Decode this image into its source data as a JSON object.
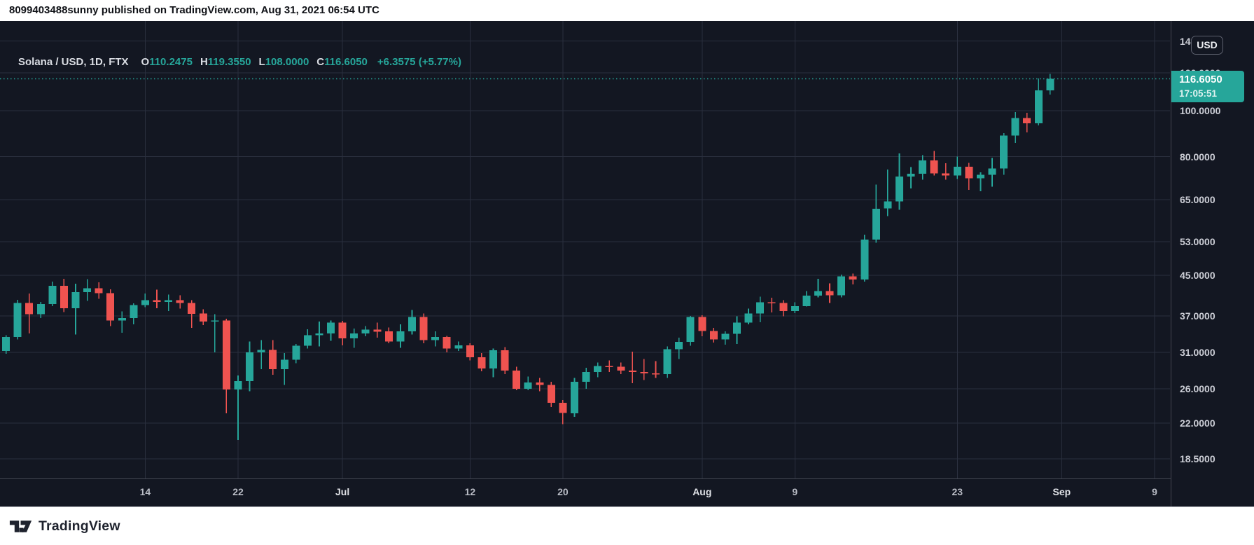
{
  "banner": {
    "text": "8099403488sunny published on TradingView.com, Aug 31, 2021 06:54 UTC"
  },
  "legend": {
    "title": "Solana / USD, 1D, FTX",
    "open_label": "O",
    "open": "110.2475",
    "high_label": "H",
    "high": "119.3550",
    "low_label": "L",
    "low": "108.0000",
    "close_label": "C",
    "close": "116.6050",
    "change": "+6.3575 (+5.77%)"
  },
  "price_axis": {
    "currency_button": "USD",
    "last_price": "116.6050",
    "countdown": "17:05:51",
    "labels": [
      {
        "text": "140.0000",
        "value": 140
      },
      {
        "text": "120.0000",
        "value": 120
      },
      {
        "text": "100.0000",
        "value": 100
      },
      {
        "text": "80.0000",
        "value": 80
      },
      {
        "text": "65.0000",
        "value": 65
      },
      {
        "text": "53.0000",
        "value": 53
      },
      {
        "text": "45.0000",
        "value": 45
      },
      {
        "text": "37.0000",
        "value": 37
      },
      {
        "text": "31.0000",
        "value": 31
      },
      {
        "text": "26.0000",
        "value": 26
      },
      {
        "text": "22.0000",
        "value": 22
      },
      {
        "text": "18.5000",
        "value": 18.5
      }
    ]
  },
  "time_axis": {
    "ticks": [
      {
        "text": "14",
        "day_index": 13,
        "major": false
      },
      {
        "text": "22",
        "day_index": 21,
        "major": false
      },
      {
        "text": "Jul",
        "day_index": 30,
        "major": true
      },
      {
        "text": "12",
        "day_index": 41,
        "major": false
      },
      {
        "text": "20",
        "day_index": 49,
        "major": false
      },
      {
        "text": "Aug",
        "day_index": 61,
        "major": true
      },
      {
        "text": "9",
        "day_index": 69,
        "major": false
      },
      {
        "text": "23",
        "day_index": 83,
        "major": false
      },
      {
        "text": "Sep",
        "day_index": 92,
        "major": true
      },
      {
        "text": "9",
        "day_index": 100,
        "major": false
      }
    ]
  },
  "footer": {
    "brand": "TradingView"
  },
  "colors": {
    "background": "#131722",
    "grid": "#2a2f3e",
    "axis_border": "#434651",
    "up": "#26a69a",
    "down": "#ef5350",
    "badge": "#26a69a",
    "price_line": "#26a69a"
  },
  "chart_data": {
    "type": "candlestick",
    "title": "Solana / USD, 1D, FTX",
    "symbol": "Solana / USD",
    "interval": "1D",
    "exchange": "FTX",
    "price_scale": "logarithmic",
    "ylim": [
      16.9,
      154.3
    ],
    "y_ticks": [
      140,
      120,
      100,
      80,
      65,
      53,
      45,
      37,
      31,
      26,
      22,
      18.5
    ],
    "x_tick_labels": [
      "14",
      "22",
      "Jul",
      "12",
      "20",
      "Aug",
      "9",
      "23",
      "Sep",
      "9"
    ],
    "last_bar": {
      "open": 110.2475,
      "high": 119.355,
      "low": 108.0,
      "close": 116.605,
      "change": "+6.3575",
      "change_pct": "+5.77%"
    },
    "candle_format": [
      "date",
      "open",
      "high",
      "low",
      "close"
    ],
    "candles": [
      [
        "2021-06-01",
        30.5,
        31.6,
        29.9,
        31.2
      ],
      [
        "2021-06-02",
        31.2,
        33.7,
        30.8,
        33.4
      ],
      [
        "2021-06-03",
        33.4,
        40.0,
        33.0,
        39.4
      ],
      [
        "2021-06-04",
        39.4,
        41.2,
        34.0,
        37.3
      ],
      [
        "2021-06-05",
        37.3,
        39.6,
        36.6,
        39.2
      ],
      [
        "2021-06-06",
        39.2,
        43.7,
        38.8,
        42.8
      ],
      [
        "2021-06-07",
        42.8,
        44.3,
        37.7,
        38.4
      ],
      [
        "2021-06-08",
        38.4,
        43.2,
        33.8,
        41.5
      ],
      [
        "2021-06-09",
        41.5,
        44.2,
        39.8,
        42.3
      ],
      [
        "2021-06-10",
        42.3,
        43.5,
        40.2,
        41.3
      ],
      [
        "2021-06-11",
        41.3,
        42.1,
        35.2,
        36.2
      ],
      [
        "2021-06-12",
        36.2,
        37.8,
        34.1,
        36.6
      ],
      [
        "2021-06-13",
        36.6,
        39.3,
        35.5,
        39.0
      ],
      [
        "2021-06-14",
        39.0,
        41.2,
        38.6,
        39.9
      ],
      [
        "2021-06-15",
        39.9,
        42.0,
        38.4,
        39.6
      ],
      [
        "2021-06-16",
        39.6,
        41.0,
        37.9,
        39.9
      ],
      [
        "2021-06-17",
        39.9,
        40.9,
        38.3,
        39.4
      ],
      [
        "2021-06-18",
        39.4,
        39.9,
        34.9,
        37.4
      ],
      [
        "2021-06-19",
        37.4,
        38.2,
        35.4,
        36.0
      ],
      [
        "2021-06-20",
        36.0,
        37.3,
        31.0,
        36.2
      ],
      [
        "2021-06-21",
        36.2,
        36.5,
        23.1,
        25.9
      ],
      [
        "2021-06-22",
        25.9,
        27.7,
        20.3,
        27.0
      ],
      [
        "2021-06-23",
        27.0,
        32.7,
        25.7,
        31.0
      ],
      [
        "2021-06-24",
        31.0,
        32.9,
        28.6,
        31.4
      ],
      [
        "2021-06-25",
        31.4,
        32.9,
        27.8,
        28.6
      ],
      [
        "2021-06-26",
        28.6,
        30.9,
        26.5,
        29.9
      ],
      [
        "2021-06-27",
        29.9,
        32.3,
        29.4,
        32.0
      ],
      [
        "2021-06-28",
        32.0,
        34.7,
        31.6,
        33.7
      ],
      [
        "2021-06-29",
        33.7,
        36.0,
        31.9,
        34.0
      ],
      [
        "2021-06-30",
        34.0,
        36.2,
        32.8,
        35.8
      ],
      [
        "2021-07-01",
        35.8,
        36.1,
        32.1,
        33.2
      ],
      [
        "2021-07-02",
        33.2,
        34.8,
        31.7,
        34.0
      ],
      [
        "2021-07-03",
        34.0,
        35.2,
        33.5,
        34.6
      ],
      [
        "2021-07-04",
        34.6,
        35.8,
        33.3,
        34.3
      ],
      [
        "2021-07-05",
        34.3,
        35.0,
        32.4,
        32.7
      ],
      [
        "2021-07-06",
        32.7,
        35.5,
        31.7,
        34.3
      ],
      [
        "2021-07-07",
        34.3,
        38.1,
        33.8,
        36.8
      ],
      [
        "2021-07-08",
        36.8,
        37.4,
        32.4,
        32.9
      ],
      [
        "2021-07-09",
        32.9,
        34.3,
        31.9,
        33.4
      ],
      [
        "2021-07-10",
        33.4,
        33.6,
        31.0,
        31.6
      ],
      [
        "2021-07-11",
        31.6,
        32.7,
        31.2,
        32.1
      ],
      [
        "2021-07-12",
        32.1,
        32.4,
        29.8,
        30.3
      ],
      [
        "2021-07-13",
        30.3,
        30.9,
        28.3,
        28.7
      ],
      [
        "2021-07-14",
        28.7,
        31.6,
        27.5,
        31.3
      ],
      [
        "2021-07-15",
        31.3,
        31.8,
        27.9,
        28.4
      ],
      [
        "2021-07-16",
        28.4,
        28.9,
        25.8,
        26.0
      ],
      [
        "2021-07-17",
        26.0,
        27.6,
        25.8,
        26.8
      ],
      [
        "2021-07-18",
        26.8,
        27.4,
        25.7,
        26.5
      ],
      [
        "2021-07-19",
        26.5,
        26.9,
        23.8,
        24.3
      ],
      [
        "2021-07-20",
        24.3,
        24.6,
        21.9,
        23.1
      ],
      [
        "2021-07-21",
        23.1,
        27.4,
        22.7,
        26.9
      ],
      [
        "2021-07-22",
        26.9,
        28.8,
        26.0,
        28.2
      ],
      [
        "2021-07-23",
        28.2,
        29.5,
        27.5,
        29.0
      ],
      [
        "2021-07-24",
        29.0,
        29.8,
        28.2,
        28.9
      ],
      [
        "2021-07-25",
        28.9,
        29.5,
        27.9,
        28.4
      ],
      [
        "2021-07-26",
        28.4,
        31.1,
        26.7,
        28.2
      ],
      [
        "2021-07-27",
        28.2,
        30.0,
        27.1,
        28.0
      ],
      [
        "2021-07-28",
        28.0,
        29.7,
        27.4,
        27.9
      ],
      [
        "2021-07-29",
        27.9,
        31.9,
        27.4,
        31.5
      ],
      [
        "2021-07-30",
        31.5,
        33.3,
        30.0,
        32.6
      ],
      [
        "2021-07-31",
        32.6,
        37.0,
        32.0,
        36.8
      ],
      [
        "2021-08-01",
        36.8,
        37.1,
        33.5,
        34.4
      ],
      [
        "2021-08-02",
        34.4,
        34.9,
        32.5,
        33.0
      ],
      [
        "2021-08-03",
        33.0,
        34.3,
        32.2,
        33.9
      ],
      [
        "2021-08-04",
        33.9,
        36.9,
        32.3,
        35.8
      ],
      [
        "2021-08-05",
        35.8,
        38.3,
        35.5,
        37.4
      ],
      [
        "2021-08-06",
        37.4,
        40.6,
        35.9,
        39.5
      ],
      [
        "2021-08-07",
        39.5,
        40.4,
        37.6,
        39.4
      ],
      [
        "2021-08-08",
        39.4,
        39.9,
        36.9,
        37.9
      ],
      [
        "2021-08-09",
        37.9,
        39.5,
        37.5,
        38.8
      ],
      [
        "2021-08-10",
        38.8,
        41.7,
        38.7,
        40.8
      ],
      [
        "2021-08-11",
        40.8,
        44.3,
        40.5,
        41.7
      ],
      [
        "2021-08-12",
        41.7,
        43.3,
        39.4,
        40.9
      ],
      [
        "2021-08-13",
        40.9,
        45.2,
        40.5,
        44.8
      ],
      [
        "2021-08-14",
        44.8,
        45.4,
        43.1,
        44.1
      ],
      [
        "2021-08-15",
        44.1,
        54.8,
        43.7,
        53.5
      ],
      [
        "2021-08-16",
        53.5,
        69.9,
        52.7,
        62.2
      ],
      [
        "2021-08-17",
        62.2,
        75.2,
        60.0,
        64.4
      ],
      [
        "2021-08-18",
        64.4,
        81.3,
        61.8,
        72.6
      ],
      [
        "2021-08-19",
        72.6,
        76.0,
        68.6,
        73.6
      ],
      [
        "2021-08-20",
        73.6,
        80.5,
        71.5,
        78.6
      ],
      [
        "2021-08-21",
        78.6,
        82.2,
        73.0,
        73.8
      ],
      [
        "2021-08-22",
        73.8,
        77.5,
        71.5,
        73.0
      ],
      [
        "2021-08-23",
        73.0,
        80.0,
        71.8,
        76.2
      ],
      [
        "2021-08-24",
        76.2,
        77.6,
        68.1,
        72.0
      ],
      [
        "2021-08-25",
        72.0,
        74.2,
        67.6,
        73.3
      ],
      [
        "2021-08-26",
        73.3,
        79.5,
        69.2,
        75.5
      ],
      [
        "2021-08-27",
        75.5,
        89.6,
        73.3,
        88.6
      ],
      [
        "2021-08-28",
        88.6,
        99.2,
        85.5,
        96.5
      ],
      [
        "2021-08-29",
        96.5,
        99.0,
        89.9,
        94.0
      ],
      [
        "2021-08-30",
        94.0,
        116.9,
        93.1,
        110.2
      ],
      [
        "2021-08-31",
        110.2475,
        119.355,
        108.0,
        116.605
      ]
    ]
  }
}
